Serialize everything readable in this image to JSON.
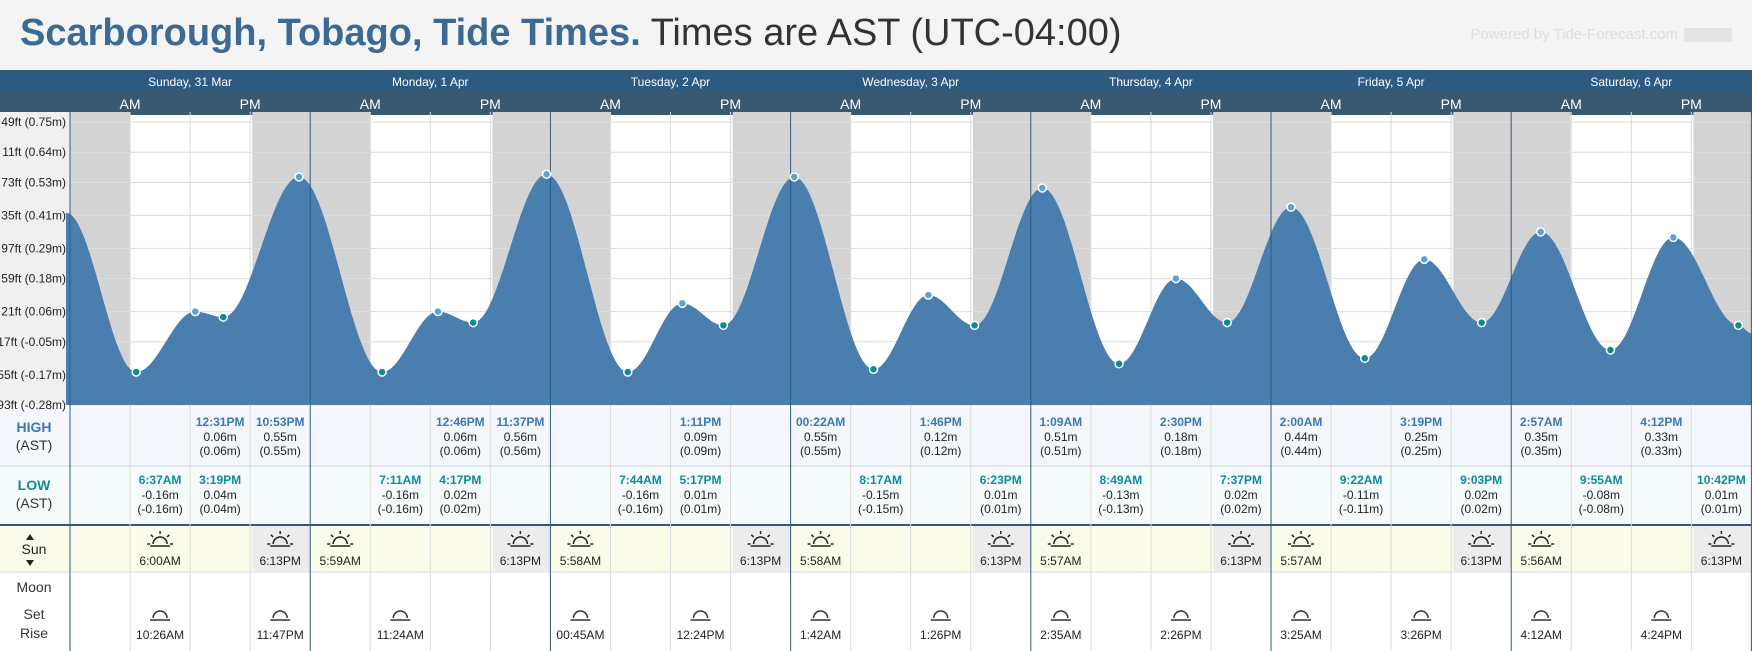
{
  "header": {
    "location": "Scarborough, Tobago, Tide Times.",
    "timezone": "Times are AST (UTC-04:00)",
    "powered_by": "Powered by Tide-Forecast.com"
  },
  "colors": {
    "dark_blue": "#2f5a80",
    "tide_fill": "#4a7eae",
    "night": "#d3d3d3",
    "high_text": "#3c78b0",
    "low_text": "#108a96",
    "sun_bg": "#fbfbe9"
  },
  "chart_data": {
    "type": "area",
    "title": "Scarborough, Tobago, Tide Times.",
    "xlabel": "",
    "ylabel": "",
    "ylim": [
      -0.28,
      0.75
    ],
    "y_ticks": [
      {
        "v": 0.75,
        "label": "49ft (0.75m)"
      },
      {
        "v": 0.64,
        "label": "11ft (0.64m)"
      },
      {
        "v": 0.53,
        "label": "73ft (0.53m)"
      },
      {
        "v": 0.41,
        "label": "35ft (0.41m)"
      },
      {
        "v": 0.29,
        "label": "97ft (0.29m)"
      },
      {
        "v": 0.18,
        "label": "59ft (0.18m)"
      },
      {
        "v": 0.06,
        "label": "21ft (0.06m)"
      },
      {
        "v": -0.05,
        "label": "17ft (-0.05m)"
      },
      {
        "v": -0.17,
        "label": "55ft (-0.17m)"
      },
      {
        "v": -0.28,
        "label": "93ft (-0.28m)"
      }
    ],
    "day_labels": [
      "Sunday, 31 Mar",
      "Monday, 1 Apr",
      "Tuesday, 2 Apr",
      "Wednesday, 3 Apr",
      "Thursday, 4 Apr",
      "Friday, 5 Apr",
      "Saturday, 6 Apr"
    ],
    "am_label": "AM",
    "pm_label": "PM",
    "start_value": 0.42,
    "end_value": -0.02,
    "tides": [
      {
        "day": 0,
        "time": "6:37AM",
        "h": -0.16,
        "type": "low",
        "m": "-0.16m",
        "ft": "(-0.16m)"
      },
      {
        "day": 0,
        "time": "12:31PM",
        "h": 0.06,
        "type": "high",
        "m": "0.06m",
        "ft": "(0.06m)"
      },
      {
        "day": 0,
        "time": "3:19PM",
        "h": 0.04,
        "type": "low",
        "m": "0.04m",
        "ft": "(0.04m)"
      },
      {
        "day": 0,
        "time": "10:53PM",
        "h": 0.55,
        "type": "high",
        "m": "0.55m",
        "ft": "(0.55m)"
      },
      {
        "day": 1,
        "time": "7:11AM",
        "h": -0.16,
        "type": "low",
        "m": "-0.16m",
        "ft": "(-0.16m)"
      },
      {
        "day": 1,
        "time": "12:46PM",
        "h": 0.06,
        "type": "high",
        "m": "0.06m",
        "ft": "(0.06m)"
      },
      {
        "day": 1,
        "time": "4:17PM",
        "h": 0.02,
        "type": "low",
        "m": "0.02m",
        "ft": "(0.02m)"
      },
      {
        "day": 1,
        "time": "11:37PM",
        "h": 0.56,
        "type": "high",
        "m": "0.56m",
        "ft": "(0.56m)"
      },
      {
        "day": 2,
        "time": "7:44AM",
        "h": -0.16,
        "type": "low",
        "m": "-0.16m",
        "ft": "(-0.16m)"
      },
      {
        "day": 2,
        "time": "1:11PM",
        "h": 0.09,
        "type": "high",
        "m": "0.09m",
        "ft": "(0.09m)"
      },
      {
        "day": 2,
        "time": "5:17PM",
        "h": 0.01,
        "type": "low",
        "m": "0.01m",
        "ft": "(0.01m)"
      },
      {
        "day": 3,
        "time": "00:22AM",
        "h": 0.55,
        "type": "high",
        "m": "0.55m",
        "ft": "(0.55m)"
      },
      {
        "day": 3,
        "time": "8:17AM",
        "h": -0.15,
        "type": "low",
        "m": "-0.15m",
        "ft": "(-0.15m)"
      },
      {
        "day": 3,
        "time": "1:46PM",
        "h": 0.12,
        "type": "high",
        "m": "0.12m",
        "ft": "(0.12m)"
      },
      {
        "day": 3,
        "time": "6:23PM",
        "h": 0.01,
        "type": "low",
        "m": "0.01m",
        "ft": "(0.01m)"
      },
      {
        "day": 4,
        "time": "1:09AM",
        "h": 0.51,
        "type": "high",
        "m": "0.51m",
        "ft": "(0.51m)"
      },
      {
        "day": 4,
        "time": "8:49AM",
        "h": -0.13,
        "type": "low",
        "m": "-0.13m",
        "ft": "(-0.13m)"
      },
      {
        "day": 4,
        "time": "2:30PM",
        "h": 0.18,
        "type": "high",
        "m": "0.18m",
        "ft": "(0.18m)"
      },
      {
        "day": 4,
        "time": "7:37PM",
        "h": 0.02,
        "type": "low",
        "m": "0.02m",
        "ft": "(0.02m)"
      },
      {
        "day": 5,
        "time": "2:00AM",
        "h": 0.44,
        "type": "high",
        "m": "0.44m",
        "ft": "(0.44m)"
      },
      {
        "day": 5,
        "time": "9:22AM",
        "h": -0.11,
        "type": "low",
        "m": "-0.11m",
        "ft": "(-0.11m)"
      },
      {
        "day": 5,
        "time": "3:19PM",
        "h": 0.25,
        "type": "high",
        "m": "0.25m",
        "ft": "(0.25m)"
      },
      {
        "day": 5,
        "time": "9:03PM",
        "h": 0.02,
        "type": "low",
        "m": "0.02m",
        "ft": "(0.02m)"
      },
      {
        "day": 6,
        "time": "2:57AM",
        "h": 0.35,
        "type": "high",
        "m": "0.35m",
        "ft": "(0.35m)"
      },
      {
        "day": 6,
        "time": "9:55AM",
        "h": -0.08,
        "type": "low",
        "m": "-0.08m",
        "ft": "(-0.08m)"
      },
      {
        "day": 6,
        "time": "4:12PM",
        "h": 0.33,
        "type": "high",
        "m": "0.33m",
        "ft": "(0.33m)"
      },
      {
        "day": 6,
        "time": "10:42PM",
        "h": 0.01,
        "type": "low",
        "m": "0.01m",
        "ft": "(0.01m)"
      }
    ],
    "sun": [
      {
        "day": 0,
        "rise": "6:00AM",
        "set": "6:13PM"
      },
      {
        "day": 1,
        "rise": "5:59AM",
        "set": "6:13PM"
      },
      {
        "day": 2,
        "rise": "5:58AM",
        "set": "6:13PM"
      },
      {
        "day": 3,
        "rise": "5:58AM",
        "set": "6:13PM"
      },
      {
        "day": 4,
        "rise": "5:57AM",
        "set": "6:13PM"
      },
      {
        "day": 5,
        "rise": "5:57AM",
        "set": "6:13PM"
      },
      {
        "day": 6,
        "rise": "5:56AM",
        "set": "6:13PM"
      }
    ],
    "moon": [
      {
        "day": 0,
        "events": [
          "10:26AM",
          "11:47PM"
        ]
      },
      {
        "day": 1,
        "events": [
          "11:24AM"
        ]
      },
      {
        "day": 2,
        "events": [
          "00:45AM",
          "12:24PM"
        ]
      },
      {
        "day": 3,
        "events": [
          "1:42AM",
          "1:26PM"
        ]
      },
      {
        "day": 4,
        "events": [
          "2:35AM",
          "2:26PM"
        ]
      },
      {
        "day": 5,
        "events": [
          "3:25AM",
          "3:26PM"
        ]
      },
      {
        "day": 6,
        "events": [
          "4:12AM",
          "4:24PM"
        ]
      }
    ],
    "row_labels": {
      "high": "HIGH",
      "high_sub": "(AST)",
      "low": "LOW",
      "low_sub": "(AST)",
      "sun": "Sun",
      "moon": "Moon",
      "moon_set": "Set",
      "moon_rise": "Rise"
    }
  }
}
